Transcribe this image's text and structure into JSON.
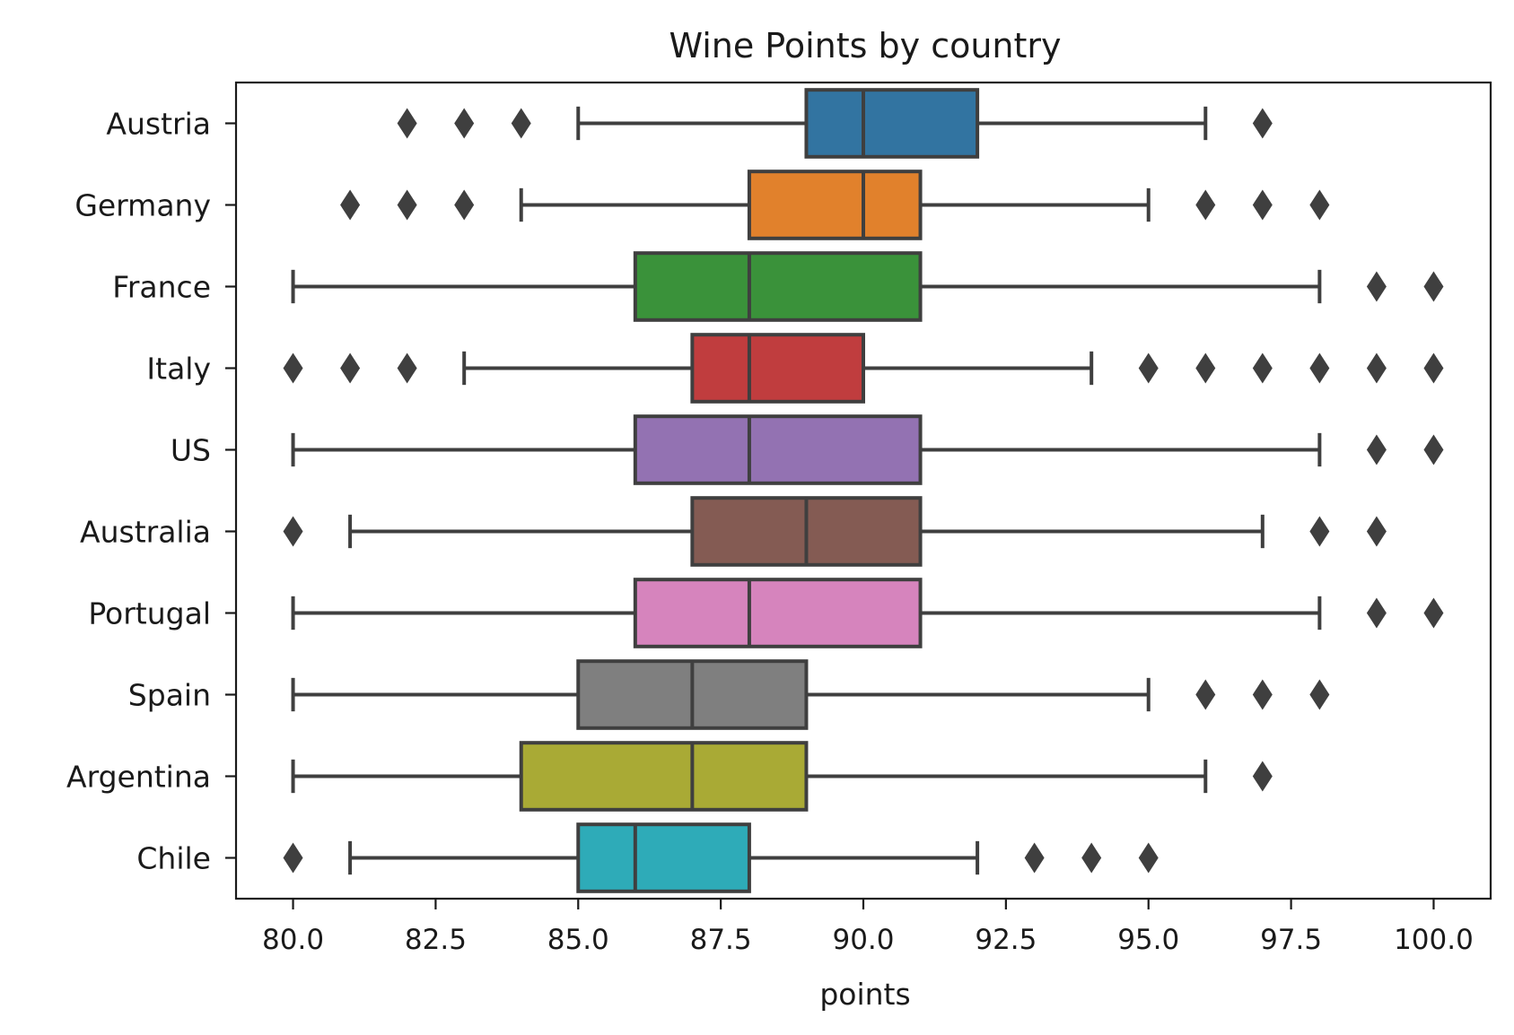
{
  "chart_data": {
    "type": "boxplot",
    "orientation": "horizontal",
    "title": "Wine Points by country",
    "xlabel": "points",
    "ylabel": "",
    "xlim": [
      79.0,
      101.0
    ],
    "xticks": [
      80.0,
      82.5,
      85.0,
      87.5,
      90.0,
      92.5,
      95.0,
      97.5,
      100.0
    ],
    "xtick_labels": [
      "80.0",
      "82.5",
      "85.0",
      "87.5",
      "90.0",
      "92.5",
      "95.0",
      "97.5",
      "100.0"
    ],
    "grid": false,
    "legend": "none",
    "outlier_marker": "diamond",
    "line_color": "#3f3f3f",
    "categories": [
      "Austria",
      "Germany",
      "France",
      "Italy",
      "US",
      "Australia",
      "Portugal",
      "Spain",
      "Argentina",
      "Chile"
    ],
    "boxes": [
      {
        "category": "Austria",
        "color": "#3274a1",
        "whisker_low": 85,
        "q1": 89,
        "median": 90,
        "q3": 92,
        "whisker_high": 96,
        "outliers": [
          82,
          83,
          84,
          97
        ]
      },
      {
        "category": "Germany",
        "color": "#e1812c",
        "whisker_low": 84,
        "q1": 88,
        "median": 90,
        "q3": 91,
        "whisker_high": 95,
        "outliers": [
          81,
          82,
          83,
          96,
          97,
          98
        ]
      },
      {
        "category": "France",
        "color": "#3a923a",
        "whisker_low": 80,
        "q1": 86,
        "median": 88,
        "q3": 91,
        "whisker_high": 98,
        "outliers": [
          99,
          100
        ]
      },
      {
        "category": "Italy",
        "color": "#c03d3e",
        "whisker_low": 83,
        "q1": 87,
        "median": 88,
        "q3": 90,
        "whisker_high": 94,
        "outliers": [
          80,
          81,
          82,
          95,
          96,
          97,
          98,
          99,
          100
        ]
      },
      {
        "category": "US",
        "color": "#9372b2",
        "whisker_low": 80,
        "q1": 86,
        "median": 88,
        "q3": 91,
        "whisker_high": 98,
        "outliers": [
          99,
          100
        ]
      },
      {
        "category": "Australia",
        "color": "#845b53",
        "whisker_low": 81,
        "q1": 87,
        "median": 89,
        "q3": 91,
        "whisker_high": 97,
        "outliers": [
          80,
          98,
          99
        ]
      },
      {
        "category": "Portugal",
        "color": "#d684bd",
        "whisker_low": 80,
        "q1": 86,
        "median": 88,
        "q3": 91,
        "whisker_high": 98,
        "outliers": [
          99,
          100
        ]
      },
      {
        "category": "Spain",
        "color": "#7f7f7f",
        "whisker_low": 80,
        "q1": 85,
        "median": 87,
        "q3": 89,
        "whisker_high": 95,
        "outliers": [
          96,
          97,
          98
        ]
      },
      {
        "category": "Argentina",
        "color": "#a9aa35",
        "whisker_low": 80,
        "q1": 84,
        "median": 87,
        "q3": 89,
        "whisker_high": 96,
        "outliers": [
          97
        ]
      },
      {
        "category": "Chile",
        "color": "#2eabb8",
        "whisker_low": 81,
        "q1": 85,
        "median": 86,
        "q3": 88,
        "whisker_high": 92,
        "outliers": [
          80,
          93,
          94,
          95
        ]
      }
    ]
  }
}
